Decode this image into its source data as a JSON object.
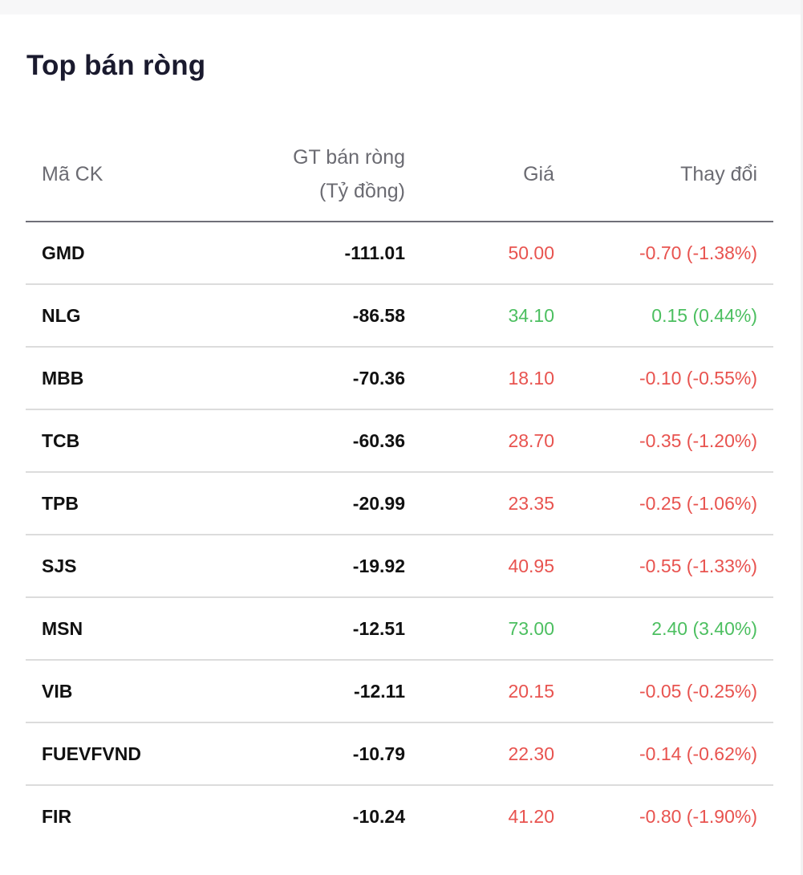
{
  "title": "Top bán ròng",
  "columns": {
    "symbol": "Mã CK",
    "net_sell_line1": "GT bán ròng",
    "net_sell_line2": "(Tỷ đồng)",
    "price": "Giá",
    "change": "Thay đổi"
  },
  "colors": {
    "down": "#e8534f",
    "up": "#4cbf60"
  },
  "rows": [
    {
      "symbol": "GMD",
      "net_sell": "-111.01",
      "price": "50.00",
      "change": "-0.70 (-1.38%)",
      "trend": "down"
    },
    {
      "symbol": "NLG",
      "net_sell": "-86.58",
      "price": "34.10",
      "change": "0.15 (0.44%)",
      "trend": "up"
    },
    {
      "symbol": "MBB",
      "net_sell": "-70.36",
      "price": "18.10",
      "change": "-0.10 (-0.55%)",
      "trend": "down"
    },
    {
      "symbol": "TCB",
      "net_sell": "-60.36",
      "price": "28.70",
      "change": "-0.35 (-1.20%)",
      "trend": "down"
    },
    {
      "symbol": "TPB",
      "net_sell": "-20.99",
      "price": "23.35",
      "change": "-0.25 (-1.06%)",
      "trend": "down"
    },
    {
      "symbol": "SJS",
      "net_sell": "-19.92",
      "price": "40.95",
      "change": "-0.55 (-1.33%)",
      "trend": "down"
    },
    {
      "symbol": "MSN",
      "net_sell": "-12.51",
      "price": "73.00",
      "change": "2.40 (3.40%)",
      "trend": "up"
    },
    {
      "symbol": "VIB",
      "net_sell": "-12.11",
      "price": "20.15",
      "change": "-0.05 (-0.25%)",
      "trend": "down"
    },
    {
      "symbol": "FUEVFVND",
      "net_sell": "-10.79",
      "price": "22.30",
      "change": "-0.14 (-0.62%)",
      "trend": "down"
    },
    {
      "symbol": "FIR",
      "net_sell": "-10.24",
      "price": "41.20",
      "change": "-0.80 (-1.90%)",
      "trend": "down"
    }
  ]
}
